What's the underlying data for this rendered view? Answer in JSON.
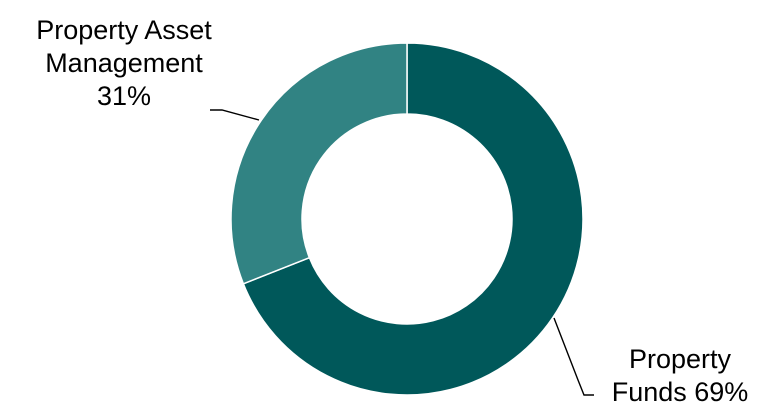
{
  "chart_data": {
    "type": "pie",
    "donut": true,
    "start_angle_deg": 0,
    "direction": "clockwise",
    "slices": [
      {
        "label_lines": [
          "Property",
          "Funds 69%"
        ],
        "value": 69,
        "color": "#00585a"
      },
      {
        "label_lines": [
          "Property Asset",
          "Management",
          "31%"
        ],
        "value": 31,
        "color": "#318383"
      }
    ],
    "separator_color": "#ffffff",
    "leader_line_color": "#000000",
    "legend": "none"
  }
}
